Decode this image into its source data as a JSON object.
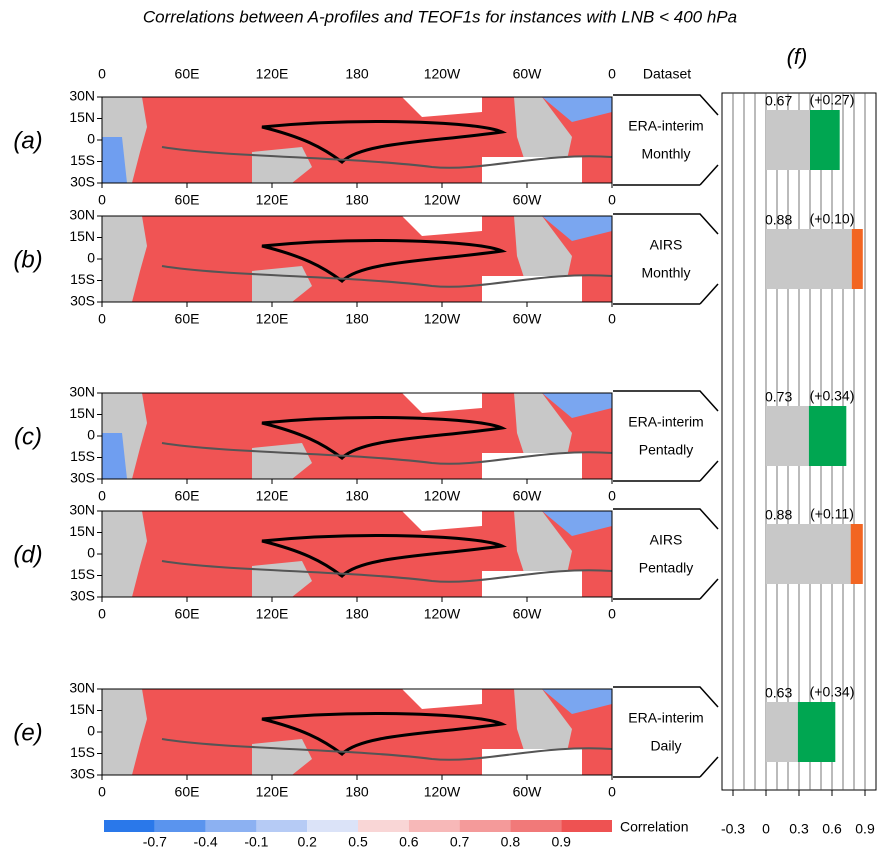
{
  "title": "Correlations between A-profiles and TEOF1s for instances with LNB < 400 hPa",
  "maps": {
    "dataset_header": "Dataset",
    "xlim": [
      0,
      360
    ],
    "ylim": [
      -30,
      30
    ],
    "xticks": [
      0,
      {
        "value": 60,
        "label": "60E"
      },
      {
        "value": 120,
        "label": "120E"
      },
      180,
      {
        "value": 240,
        "label": "120W"
      },
      {
        "value": 300,
        "label": "60W"
      },
      {
        "value": 360,
        "label": "0"
      }
    ],
    "yticks": [
      {
        "value": 30,
        "label": "30N"
      },
      {
        "value": 15,
        "label": "15N"
      },
      0,
      {
        "value": -15,
        "label": "15S"
      },
      {
        "value": -30,
        "label": "30S"
      }
    ],
    "panels": [
      {
        "label": "(a)",
        "dataset": "ERA-interim",
        "frequency": "Monthly",
        "dataset_color": "#00a651"
      },
      {
        "label": "(b)",
        "dataset": "AIRS",
        "frequency": "Monthly",
        "dataset_color": "#f26522"
      },
      {
        "label": "(c)",
        "dataset": "ERA-interim",
        "frequency": "Pentadly",
        "dataset_color": "#00a651"
      },
      {
        "label": "(d)",
        "dataset": "AIRS",
        "frequency": "Pentadly",
        "dataset_color": "#f26522"
      },
      {
        "label": "(e)",
        "dataset": "ERA-interim",
        "frequency": "Daily",
        "dataset_color": "#00a651"
      }
    ]
  },
  "colorbar": {
    "title": "Correlation",
    "labels": [
      -0.7,
      -0.4,
      -0.1,
      0.2,
      0.5,
      0.6,
      0.7,
      0.8,
      0.9
    ],
    "colors": [
      "#2a78ea",
      "#5a94ee",
      "#8cb1f2",
      "#b6cbf5",
      "#dbe3f8",
      "#f9d6d6",
      "#f7b8b8",
      "#f49a9a",
      "#f17979",
      "#ee5252"
    ]
  },
  "chart_data": {
    "type": "bar",
    "title": "(f)",
    "orientation": "horizontal",
    "values": [
      0.67,
      0.88,
      0.73,
      0.88,
      0.63
    ],
    "increments": [
      0.27,
      0.1,
      0.34,
      0.11,
      0.34
    ],
    "increment_labels": [
      "(+0.27)",
      "(+0.10)",
      "(+0.34)",
      "(+0.11)",
      "(+0.34)"
    ],
    "colors": [
      "#00a651",
      "#f26522",
      "#00a651",
      "#f26522",
      "#00a651"
    ],
    "base_color": "#c8c8c8",
    "xlim": [
      -0.4,
      1.0
    ],
    "xticks": [
      -0.3,
      0,
      0.3,
      0.6,
      0.9
    ],
    "xgrid": [
      -0.3,
      -0.2,
      -0.1,
      0,
      0.1,
      0.2,
      0.3,
      0.4,
      0.5,
      0.6,
      0.7,
      0.8,
      0.9
    ]
  }
}
